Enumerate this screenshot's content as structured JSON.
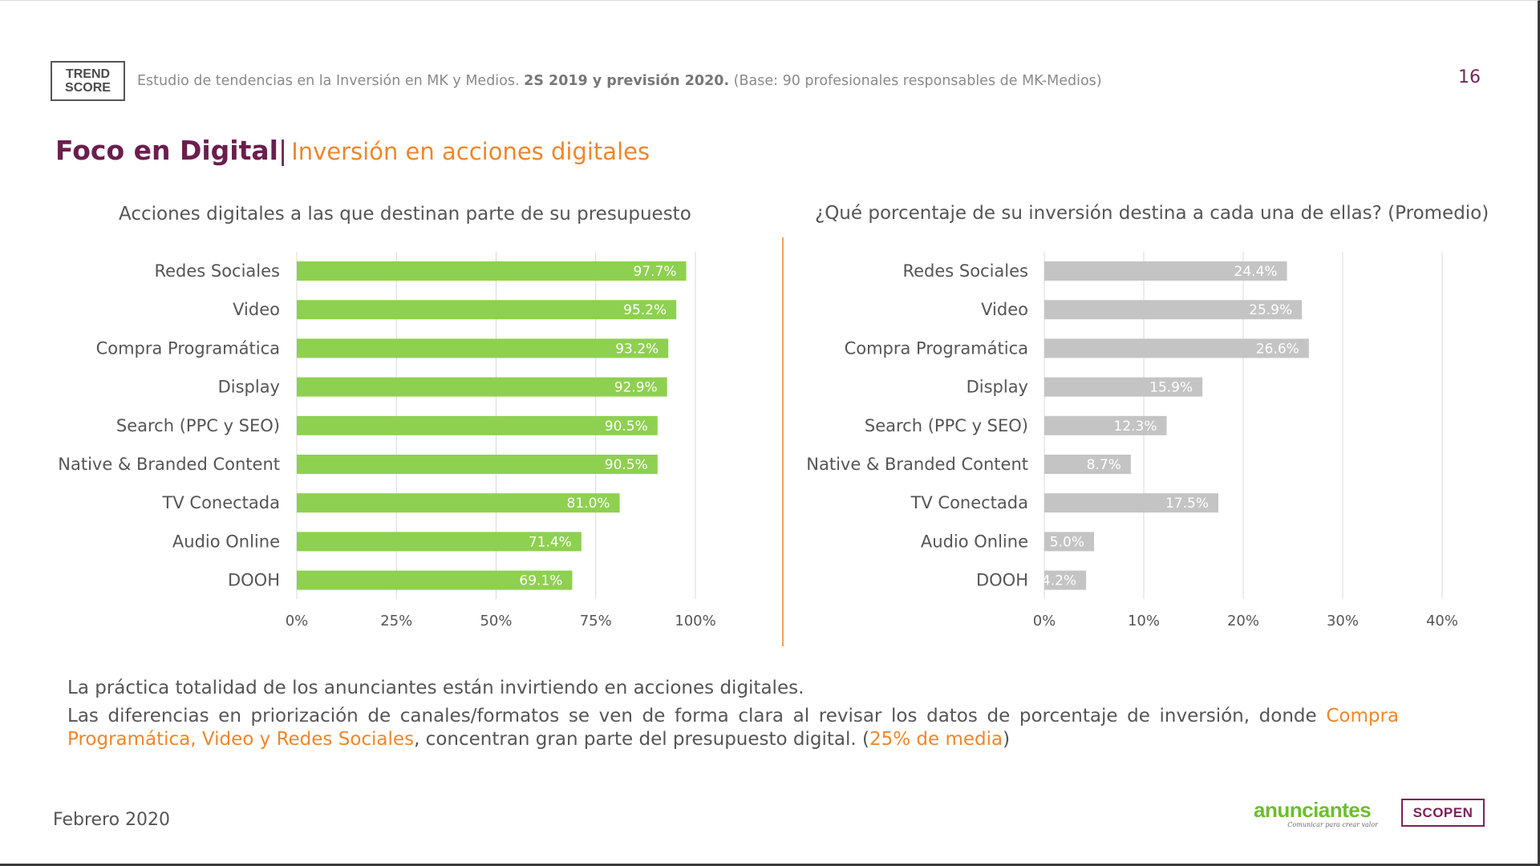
{
  "header": {
    "logo_line1": "TREND",
    "logo_line2": "SCORE",
    "study_text": "Estudio de tendencias en la Inversión en MK y Medios.",
    "period_text": "2S 2019 y previsión 2020.",
    "base_text": "(Base: 90 profesionales responsables de MK-Medios)",
    "page_number": "16"
  },
  "title": {
    "main": "Foco en Digital",
    "separator": "|",
    "subtitle": "Inversión en acciones digitales"
  },
  "chart_data": [
    {
      "type": "bar",
      "orientation": "horizontal",
      "title": "Acciones digitales a las que destinan parte de su presupuesto",
      "categories": [
        "Redes Sociales",
        "Video",
        "Compra Programática",
        "Display",
        "Search (PPC y SEO)",
        "Native & Branded Content",
        "TV Conectada",
        "Audio Online",
        "DOOH"
      ],
      "values": [
        97.7,
        95.2,
        93.2,
        92.9,
        90.5,
        90.5,
        81.0,
        71.4,
        69.1
      ],
      "value_labels": [
        "97.7%",
        "95.2%",
        "93.2%",
        "92.9%",
        "90.5%",
        "90.5%",
        "81.0%",
        "71.4%",
        "69.1%"
      ],
      "xlim": [
        0,
        100
      ],
      "ticks": [
        0,
        25,
        50,
        75,
        100
      ],
      "tick_labels": [
        "0%",
        "25%",
        "50%",
        "75%",
        "100%"
      ],
      "grid": true,
      "color": "#8ed050"
    },
    {
      "type": "bar",
      "orientation": "horizontal",
      "title": "¿Qué porcentaje de su inversión destina a cada una de ellas? (Promedio)",
      "categories": [
        "Redes Sociales",
        "Video",
        "Compra Programática",
        "Display",
        "Search (PPC y SEO)",
        "Native & Branded Content",
        "TV Conectada",
        "Audio Online",
        "DOOH"
      ],
      "values": [
        24.4,
        25.9,
        26.6,
        15.9,
        12.3,
        8.7,
        17.5,
        5.0,
        4.2
      ],
      "value_labels": [
        "24.4%",
        "25.9%",
        "26.6%",
        "15.9%",
        "12.3%",
        "8.7%",
        "17.5%",
        "5.0%",
        "4.2%"
      ],
      "xlim": [
        0,
        40
      ],
      "ticks": [
        0,
        10,
        20,
        30,
        40
      ],
      "tick_labels": [
        "0%",
        "10%",
        "20%",
        "30%",
        "40%"
      ],
      "grid": true,
      "color": "#c4c4c4"
    }
  ],
  "notes": {
    "line1": "La práctica totalidad de los anunciantes están invirtiendo en acciones digitales.",
    "line2_a": "Las diferencias en priorización de canales/formatos se ven de forma clara al revisar los datos de porcentaje de inversión, donde ",
    "line2_hl1": "Compra Programática, Video y Redes Sociales",
    "line2_b": ", concentran gran parte del presupuesto digital. (",
    "line2_hl2": "25% de media",
    "line2_c": ")"
  },
  "footer": {
    "date": "Febrero 2020",
    "anunciantes_logo": "anunciantes",
    "anunciantes_tagline": "Comunicar para crear valor",
    "scopen_logo": "SCOPEN"
  }
}
